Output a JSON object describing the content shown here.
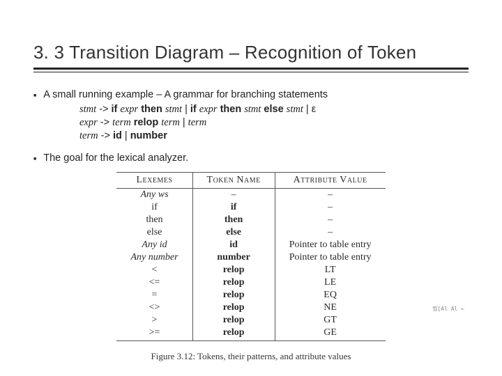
{
  "title": "3. 3 Transition Diagram – Recognition of Token",
  "bullet1": "A small running example – A grammar for branching statements",
  "grammar": {
    "line1": {
      "lhs": "stmt",
      "arrow": "->",
      "p1": "if",
      "p2": "expr",
      "p3": "then",
      "p4": "stmt",
      "bar1": "|",
      "p5": "if",
      "p6": "expr",
      "p7": "then",
      "p8": "stmt",
      "p9": "else",
      "p10": "stmt",
      "bar2": "|",
      "p11": "ε"
    },
    "line2": {
      "lhs": "expr",
      "arrow": "->",
      "p1": "term",
      "p2": "relop",
      "p3": "term",
      "bar": "|",
      "p4": "term"
    },
    "line3": {
      "lhs": "term",
      "arrow": "->",
      "p1": "id",
      "bar": "|",
      "p2": "number"
    }
  },
  "bullet2": "The goal for the lexical analyzer.",
  "table": {
    "headers": [
      "Lexemes",
      "Token Name",
      "Attribute Value"
    ],
    "rows": [
      {
        "lex": "Any ws",
        "lex_it": true,
        "tok": "–",
        "tok_bf": false,
        "attr": "–"
      },
      {
        "lex": "if",
        "tok": "if",
        "tok_bf": true,
        "attr": "–"
      },
      {
        "lex": "then",
        "tok": "then",
        "tok_bf": true,
        "attr": "–"
      },
      {
        "lex": "else",
        "tok": "else",
        "tok_bf": true,
        "attr": "–"
      },
      {
        "lex": "Any id",
        "lex_it": true,
        "tok": "id",
        "tok_bf": true,
        "attr": "Pointer to table entry"
      },
      {
        "lex": "Any number",
        "lex_it": true,
        "tok": "number",
        "tok_bf": true,
        "attr": "Pointer to table entry"
      },
      {
        "lex": "<",
        "tok": "relop",
        "tok_bf": true,
        "attr": "LT"
      },
      {
        "lex": "<=",
        "tok": "relop",
        "tok_bf": true,
        "attr": "LE"
      },
      {
        "lex": "=",
        "tok": "relop",
        "tok_bf": true,
        "attr": "EQ"
      },
      {
        "lex": "<>",
        "tok": "relop",
        "tok_bf": true,
        "attr": "NE"
      },
      {
        "lex": ">",
        "tok": "relop",
        "tok_bf": true,
        "attr": "GT"
      },
      {
        "lex": ">=",
        "tok": "relop",
        "tok_bf": true,
        "attr": "GE"
      }
    ]
  },
  "caption": "Figure 3.12: Tokens, their patterns, and attribute values",
  "noise_text": "찜[Al   Al ←"
}
